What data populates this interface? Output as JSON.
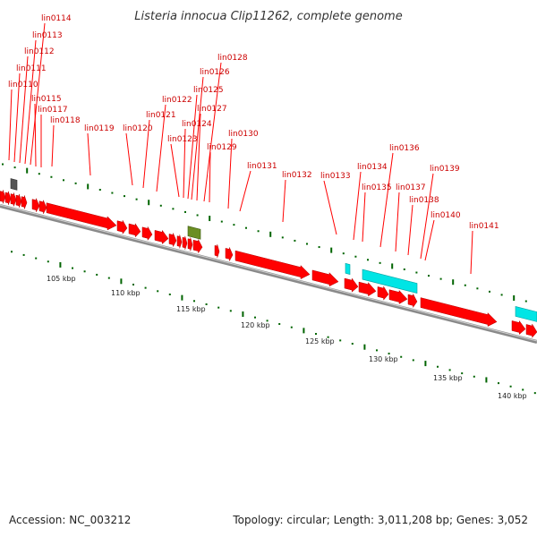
{
  "title": "Listeria innocua Clip11262, complete genome",
  "footer": {
    "accession": "Accession: NC_003212",
    "topology": "Topology: circular; Length: 3,011,208 bp; Genes: 3,052"
  },
  "colors": {
    "cds": "#ff0000",
    "rna": "#00e5e5",
    "misc": "#6b8e23",
    "pseudo": "#555555",
    "label": "#cc0000",
    "tick": "#006400",
    "backbone": "#888888"
  },
  "kbp_labels": [
    "105 kbp",
    "110 kbp",
    "115 kbp",
    "120 kbp",
    "125 kbp",
    "130 kbp",
    "135 kbp",
    "140 kbp"
  ],
  "gene_labels": [
    "lin0110",
    "lin0111",
    "lin0112",
    "lin0113",
    "lin0114",
    "lin0115",
    "lin0117",
    "lin0118",
    "lin0119",
    "lin0120",
    "lin0121",
    "lin0122",
    "lin0123",
    "lin0124",
    "lin0125",
    "lin0126",
    "lin0127",
    "lin0128",
    "lin0129",
    "lin0130",
    "lin0131",
    "lin0132",
    "lin0133",
    "lin0134",
    "lin0135",
    "lin0136",
    "lin0137",
    "lin0138",
    "lin0139",
    "lin0140",
    "lin0141"
  ]
}
